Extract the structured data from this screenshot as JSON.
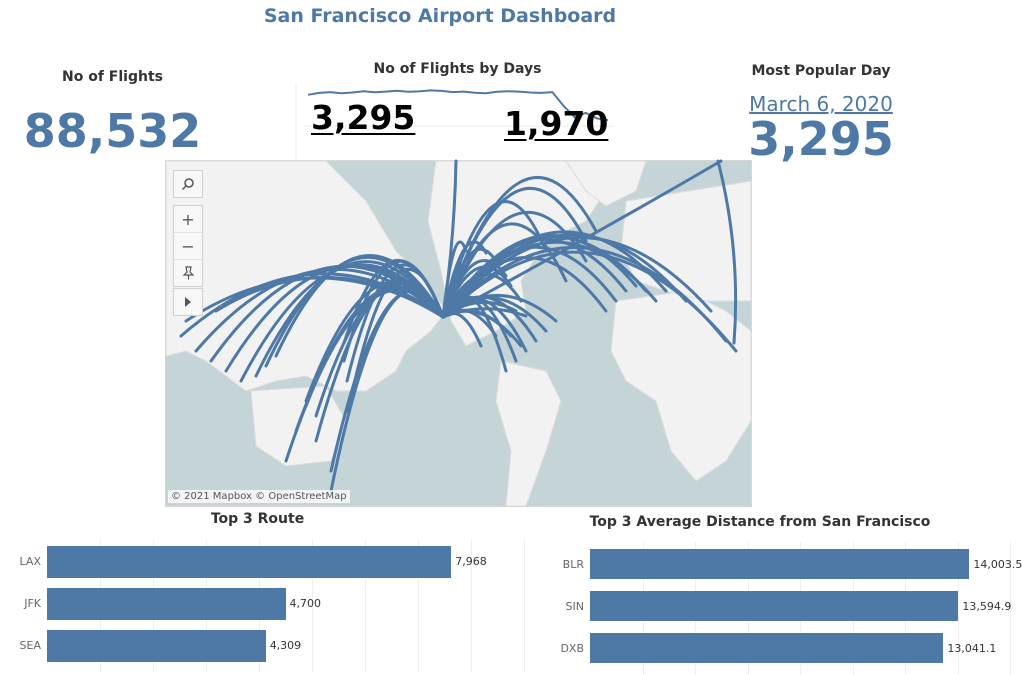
{
  "dashboard": {
    "title": "San Francisco Airport Dashboard"
  },
  "kpis": {
    "flights_label": "No of Flights",
    "flights_value": "88,532",
    "by_days_label": "No of Flights by Days",
    "by_days_max": "3,295",
    "by_days_last": "1,970",
    "popular_label": "Most Popular Day",
    "popular_date": "March 6, 2020",
    "popular_value": "3,295"
  },
  "map": {
    "attribution": "© 2021 Mapbox © OpenStreetMap",
    "controls": [
      "search-icon",
      "zoom-in-icon",
      "zoom-out-icon",
      "pin-icon",
      "expand-arrow-icon"
    ],
    "route_color": "#4e79a7"
  },
  "chart_data": [
    {
      "type": "line",
      "title": "No of Flights by Days",
      "values": [
        3100,
        3180,
        3220,
        3170,
        3200,
        3260,
        3210,
        3240,
        3280,
        3230,
        3250,
        3295,
        3270,
        3220,
        3240,
        3190,
        3170,
        3230,
        3260,
        3240,
        3200,
        3180,
        3220,
        2600,
        2100,
        2300,
        2050,
        1970
      ]
    },
    {
      "type": "bar",
      "orientation": "horizontal",
      "title": "Top 3 Route",
      "categories": [
        "LAX",
        "JFK",
        "SEA"
      ],
      "values": [
        7968,
        4700,
        4309
      ],
      "labels": [
        "7,968",
        "4,700",
        "4,309"
      ],
      "xlim": [
        0,
        9400
      ]
    },
    {
      "type": "bar",
      "orientation": "horizontal",
      "title": "Top 3 Average  Distance from San Francisco",
      "categories": [
        "BLR",
        "SIN",
        "DXB"
      ],
      "values": [
        14003.5,
        13594.9,
        13041.1
      ],
      "labels": [
        "14,003.5",
        "13,594.9",
        "13,041.1"
      ],
      "xlim": [
        0,
        15500
      ]
    }
  ],
  "colors": {
    "accent": "#4e79a7"
  }
}
